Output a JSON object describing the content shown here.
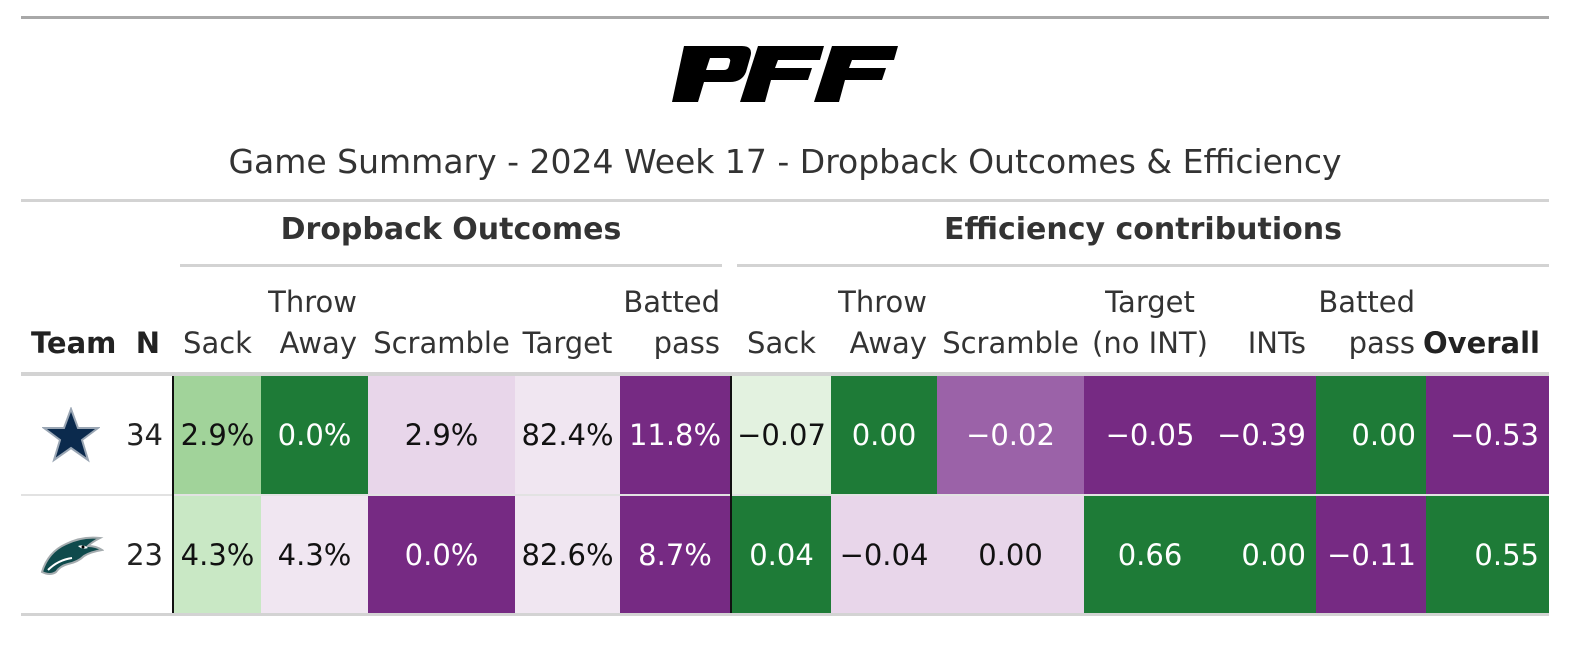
{
  "brand": {
    "logo_text": "PFF"
  },
  "title": "Game Summary - 2024 Week 17 - Dropback Outcomes & Efficiency",
  "spanners": {
    "outcomes": "Dropback Outcomes",
    "efficiency": "Efficiency contributions"
  },
  "columns": {
    "team": "Team",
    "n": "N",
    "sack": "Sack",
    "throw_away": [
      "Throw",
      "Away"
    ],
    "scramble": "Scramble",
    "target": "Target",
    "batted": [
      "Batted",
      "pass"
    ],
    "eff_sack": "Sack",
    "eff_throw_away": [
      "Throw",
      "Away"
    ],
    "eff_scramble": "Scramble",
    "eff_target": [
      "Target",
      "(no INT)"
    ],
    "eff_ints": "INTs",
    "eff_batted": [
      "Batted",
      "pass"
    ],
    "overall": "Overall"
  },
  "colors": {
    "dark_green": "#1e7b37",
    "mid_green": "#a1d39a",
    "light_green": "#c9e8c5",
    "pale_green": "#e3f2e0",
    "dark_purple": "#762a83",
    "mid_purple": "#9b62a8",
    "light_purple": "#e8d6ea",
    "pale_purple": "#f0e6f1"
  },
  "rows": [
    {
      "team_icon": "cowboys-star-logo",
      "n": "34",
      "sack": "2.9%",
      "throw_away": "0.0%",
      "scramble": "2.9%",
      "target": "82.4%",
      "batted": "11.8%",
      "eff_sack": "−0.07",
      "eff_throw_away": "0.00",
      "eff_scramble": "−0.02",
      "eff_target": "−0.05",
      "eff_ints": "−0.39",
      "eff_batted": "0.00",
      "overall": "−0.53"
    },
    {
      "team_icon": "eagles-head-logo",
      "n": "23",
      "sack": "4.3%",
      "throw_away": "4.3%",
      "scramble": "0.0%",
      "target": "82.6%",
      "batted": "8.7%",
      "eff_sack": "0.04",
      "eff_throw_away": "−0.04",
      "eff_scramble": "0.00",
      "eff_target": "0.66",
      "eff_ints": "0.00",
      "eff_batted": "−0.11",
      "overall": "0.55"
    }
  ]
}
